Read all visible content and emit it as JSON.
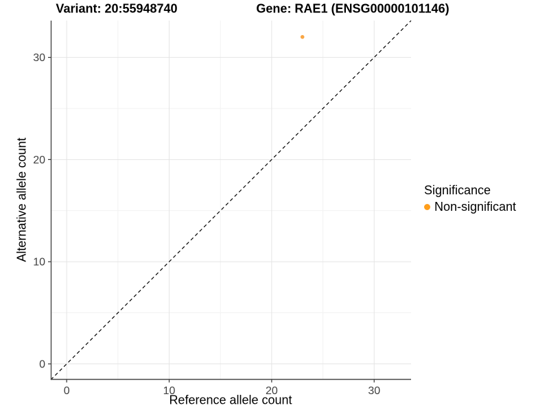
{
  "chart_data": {
    "type": "scatter",
    "title_left": "Variant: 20:55948740",
    "title_right": "Gene: RAE1 (ENSG00000101146)",
    "xlabel": "Reference allele count",
    "ylabel": "Alternative allele count",
    "xlim": [
      -1.55,
      33.6
    ],
    "ylim": [
      -1.55,
      33.6
    ],
    "x_ticks": [
      0,
      10,
      20,
      30
    ],
    "y_ticks": [
      0,
      10,
      20,
      30
    ],
    "x_minor_ticks": [
      5,
      15,
      25
    ],
    "y_minor_ticks": [
      5,
      15,
      25
    ],
    "grid": "major+minor",
    "points": [
      {
        "x": 23,
        "y": 32,
        "series": "Non-significant"
      }
    ],
    "abline": {
      "slope": 1,
      "intercept": 0,
      "style": "dashed"
    },
    "legend": {
      "title": "Significance",
      "position": "right",
      "items": [
        {
          "label": "Non-significant",
          "color": "#FF9E1B"
        }
      ]
    },
    "colors": {
      "point": "#F9A644",
      "grid_major": "#E4E4E4",
      "grid_minor": "#F2F2F2",
      "axis_line": "#464646",
      "tick_mark": "#333333",
      "tick_label": "#404040",
      "dashed_line": "#000000",
      "background": "#FFFFFF"
    }
  }
}
